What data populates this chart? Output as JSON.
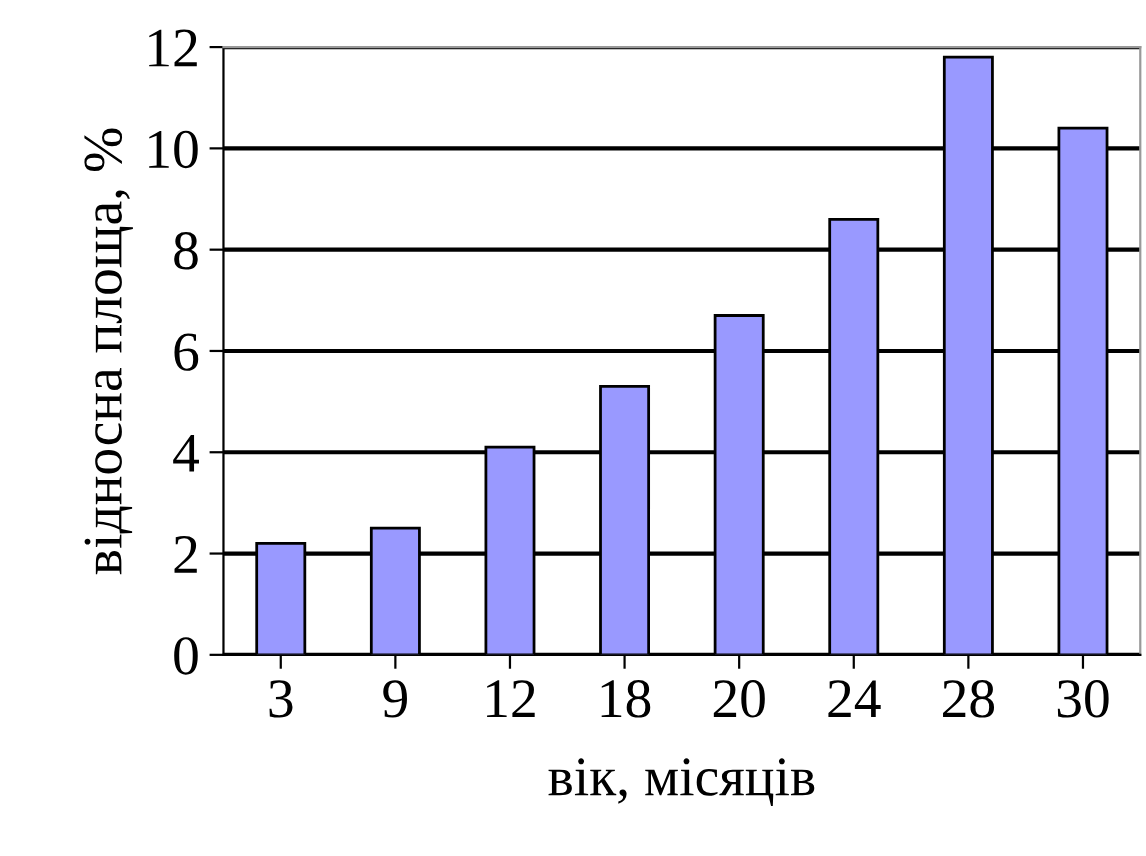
{
  "chart_data": {
    "type": "bar",
    "xlabel": "вік, місяців",
    "ylabel": "відносна площа, %",
    "categories": [
      "3",
      "9",
      "12",
      "18",
      "20",
      "24",
      "28",
      "30"
    ],
    "values": [
      2.2,
      2.5,
      4.1,
      5.3,
      6.7,
      8.6,
      11.8,
      10.4
    ],
    "color": "#9999ff",
    "ylim": [
      0,
      12
    ],
    "yticks": [
      0,
      2,
      4,
      6,
      8,
      10,
      12
    ],
    "grid": "y",
    "legend": false
  }
}
